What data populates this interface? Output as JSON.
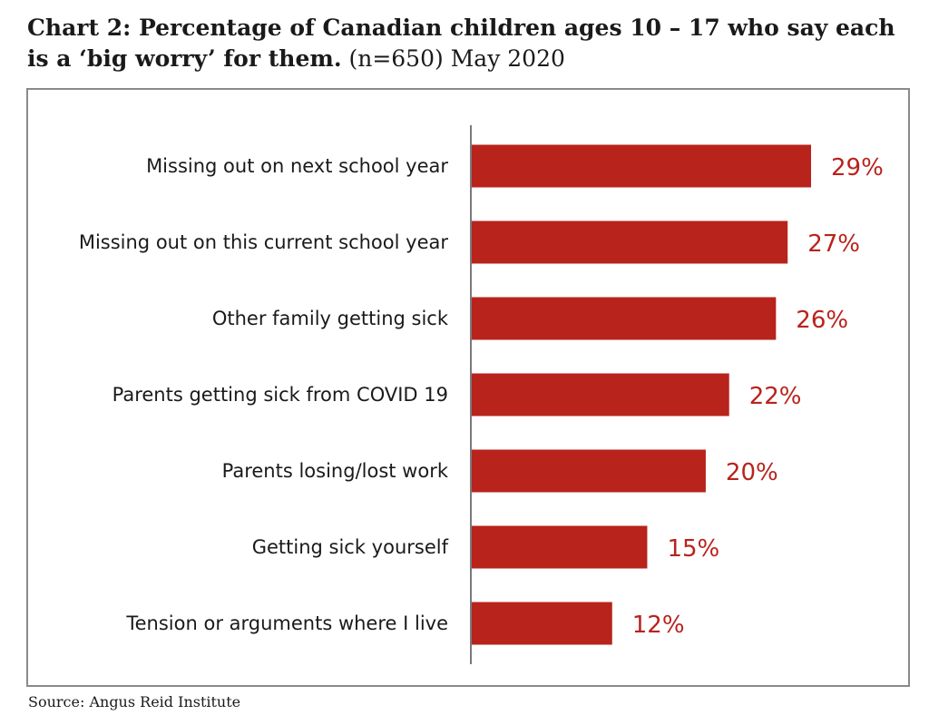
{
  "header": {
    "title_bold": "Chart 2: Percentage of Canadian children ages 10 – 17 who say each is a ‘big worry’ for them.",
    "title_rest": " (n=650) May 2020"
  },
  "source": "Source: Angus Reid Institute",
  "colors": {
    "bar": "#b8231c",
    "value_text": "#b8231c",
    "axis": "#7a7a7a",
    "frame": "#8a8a8a"
  },
  "chart_data": {
    "type": "bar",
    "orientation": "horizontal",
    "categories": [
      "Missing out on next school year",
      "Missing out on this current school year",
      "Other family getting sick",
      "Parents getting sick from COVID 19",
      "Parents losing/lost work",
      "Getting sick yourself",
      "Tension or arguments where I live"
    ],
    "values": [
      29,
      27,
      26,
      22,
      20,
      15,
      12
    ],
    "value_labels": [
      "29%",
      "27%",
      "26%",
      "22%",
      "20%",
      "15%",
      "12%"
    ],
    "xlim": [
      0,
      29
    ],
    "grid": false,
    "legend": false
  }
}
